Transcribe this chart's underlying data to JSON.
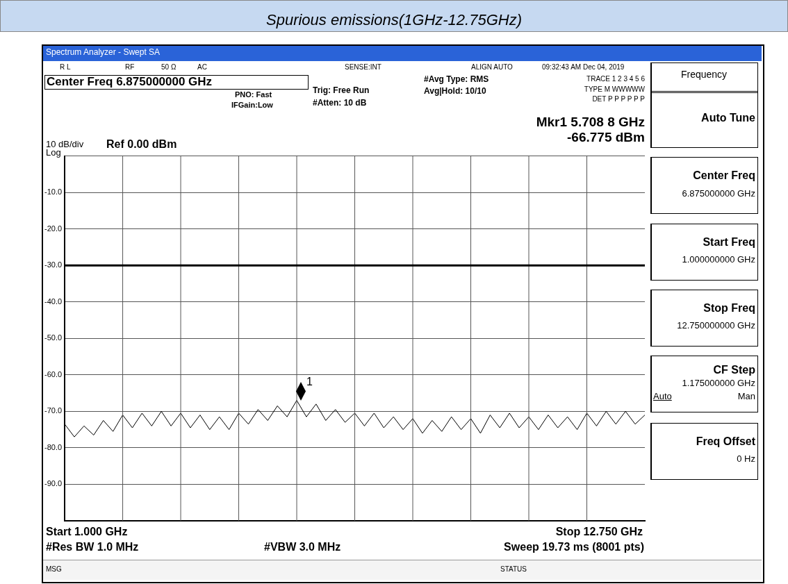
{
  "chart_data": {
    "type": "line",
    "title": "Spurious emissions(1GHz-12.75GHz)",
    "categories": [
      null,
      null,
      null,
      null,
      null,
      null,
      null,
      null,
      null,
      null,
      null,
      null,
      null,
      null,
      null,
      null,
      null,
      null,
      null,
      null,
      null,
      null,
      null,
      null,
      null,
      null,
      null,
      null,
      null,
      null,
      null,
      null,
      null,
      null,
      null,
      null,
      null,
      null,
      null,
      null,
      null,
      null,
      null,
      null,
      null,
      null,
      null,
      null,
      null,
      null,
      null,
      null,
      null,
      null,
      null,
      null,
      null,
      null,
      null,
      null,
      null
    ],
    "series": [
      {
        "color": "#000000",
        "values": [
          -73.5,
          -77,
          -74,
          -76.5,
          -72.5,
          -75.5,
          -71,
          -74.5,
          -70.5,
          -74,
          -70,
          -74,
          -70.5,
          -74.5,
          -71,
          -75,
          -71.5,
          -75,
          -70.5,
          -73.5,
          -69.5,
          -72.5,
          -68.5,
          -71.5,
          -67,
          -71.5,
          -68,
          -72.5,
          -69.5,
          -73,
          -70.5,
          -74,
          -70.5,
          -74.5,
          -71.5,
          -75,
          -72,
          -76,
          -72.5,
          -75.5,
          -71.5,
          -75,
          -72,
          -76,
          -71,
          -74.5,
          -70.5,
          -74.5,
          -71.5,
          -75,
          -71,
          -74.5,
          -71.5,
          -75,
          -70.5,
          -74,
          -70,
          -73.5,
          -70,
          -73.5,
          -71
        ]
      }
    ],
    "ylim": [
      -100,
      0
    ],
    "yticks": [
      {
        "value": -100,
        "label": null
      },
      {
        "value": -90,
        "label": "-90.0"
      },
      {
        "value": -80,
        "label": "-80.0"
      },
      {
        "value": -70,
        "label": "-70.0"
      },
      {
        "value": -60,
        "label": "-60.0"
      },
      {
        "value": -50,
        "label": "-50.0"
      },
      {
        "value": -40,
        "label": "-40.0"
      },
      {
        "value": -30,
        "label": "-30.0"
      },
      {
        "value": -20,
        "label": "-20.0"
      },
      {
        "value": -10,
        "label": "-10.0"
      },
      {
        "value": 0,
        "label": null
      }
    ],
    "ref_lines": [
      {
        "axis": "y",
        "value": -30,
        "color": "#000000"
      }
    ],
    "grid": true,
    "legend": false,
    "marker": "none",
    "line_style": "solid",
    "annotations": [
      "Spectrum Analyzer - Swept SA",
      "R L",
      "RF",
      "50 Ω",
      "AC",
      "SENSE:INT",
      "ALIGN AUTO",
      "09:32:43 AM Dec 04, 2019",
      "Center Freq 6.875000000 GHz",
      "PNO: Fast",
      "IFGain:Low",
      "Trig: Free Run",
      "#Atten: 10 dB",
      "#Avg Type: RMS",
      "Avg|Hold: 10/10",
      "TRACE 1 2 3 4 5 6",
      "TYPE M WWWWW",
      "DET P P P P P P",
      "Mkr1 5.708 8 GHz",
      "-66.775 dBm",
      "10 dB/div",
      "Log",
      "Ref 0.00 dBm",
      "Start 1.000 GHz",
      "Stop 12.750 GHz",
      "#Res BW 1.0 MHz",
      "#VBW 3.0 MHz",
      "Sweep  19.73 ms (8001 pts)",
      "MSG",
      "STATUS",
      "Frequency",
      "Auto Tune",
      "Center Freq",
      "6.875000000 GHz",
      "Start Freq",
      "1.000000000 GHz",
      "Stop Freq",
      "12.750000000 GHz",
      "CF Step",
      "1.175000000 GHz",
      "Auto",
      "Man",
      "Freq Offset",
      "0 Hz",
      "1"
    ]
  }
}
